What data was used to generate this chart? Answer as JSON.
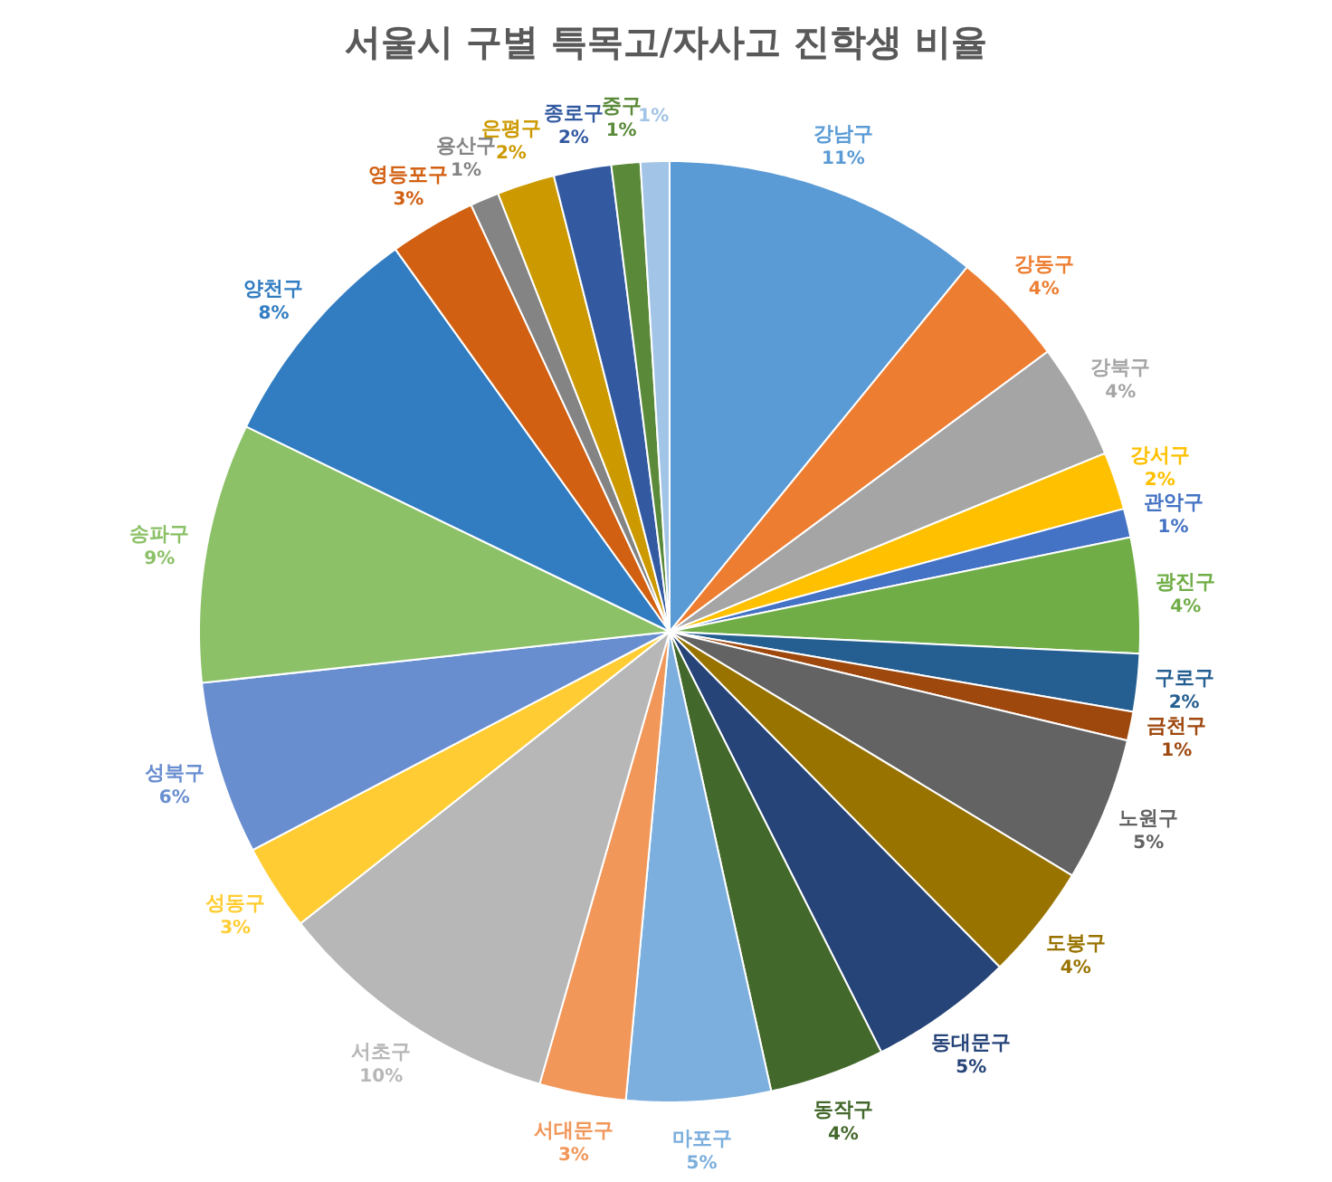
{
  "chart_data": {
    "type": "pie",
    "title": "서울시 구별 특목고/자사고 진학생 비율",
    "categories": [
      "강남구",
      "강동구",
      "강북구",
      "강서구",
      "관악구",
      "광진구",
      "구로구",
      "금천구",
      "노원구",
      "도봉구",
      "동대문구",
      "동작구",
      "마포구",
      "서대문구",
      "서초구",
      "성동구",
      "성북구",
      "송파구",
      "양천구",
      "영등포구",
      "용산구",
      "은평구",
      "종로구",
      "중구",
      null
    ],
    "values": [
      11,
      4,
      4,
      2,
      1,
      4,
      2,
      1,
      5,
      4,
      5,
      4,
      5,
      3,
      10,
      3,
      6,
      9,
      8,
      3,
      1,
      2,
      2,
      1,
      1
    ],
    "value_labels": [
      "11%",
      "4%",
      "4%",
      "2%",
      "1%",
      "4%",
      "2%",
      "1%",
      "5%",
      "4%",
      "5%",
      "4%",
      "5%",
      "3%",
      "10%",
      "3%",
      "6%",
      "9%",
      "8%",
      "3%",
      "1%",
      "2%",
      "2%",
      "1%",
      "1%"
    ],
    "colors": [
      "#5b9bd5",
      "#ed7d31",
      "#a5a5a5",
      "#ffc000",
      "#4472c4",
      "#70ad47",
      "#255e91",
      "#9e480e",
      "#636363",
      "#997300",
      "#264478",
      "#43682b",
      "#7cafdd",
      "#f1975a",
      "#b7b7b7",
      "#ffcd33",
      "#698ed0",
      "#8cc168",
      "#327dc2",
      "#d26012",
      "#848484",
      "#cc9a00",
      "#335aa1",
      "#5a8a39",
      "#a2c4e6"
    ]
  }
}
